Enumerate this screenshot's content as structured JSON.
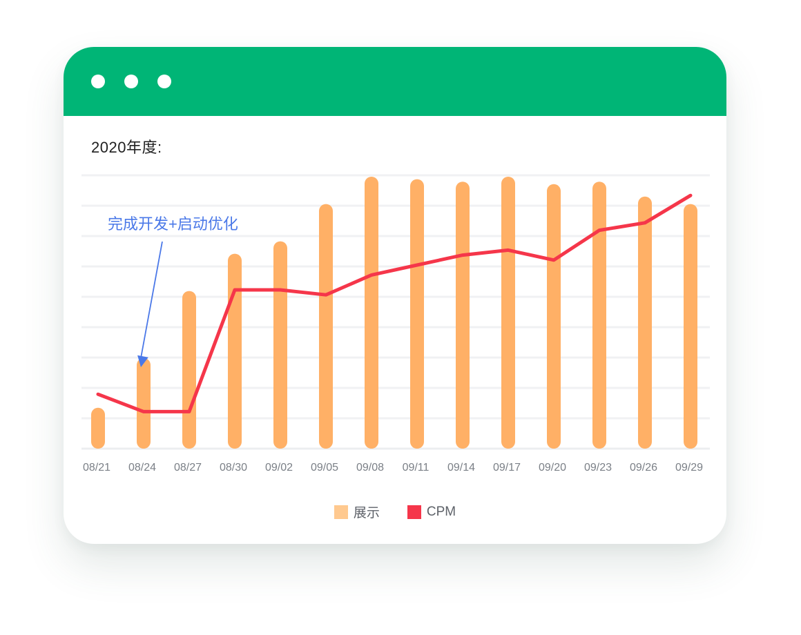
{
  "window": {
    "title_bar_color": "#00b576",
    "dots": [
      "dot",
      "dot",
      "dot"
    ]
  },
  "chart_data": {
    "type": "bar",
    "title": "2020年度:",
    "categories": [
      "08/21",
      "08/24",
      "08/27",
      "08/30",
      "09/02",
      "09/05",
      "09/08",
      "09/11",
      "09/14",
      "09/17",
      "09/20",
      "09/23",
      "09/26",
      "09/29"
    ],
    "ylim": [
      0,
      100
    ],
    "grid": true,
    "legend_position": "bottom-center",
    "series": [
      {
        "name": "展示",
        "type": "bar",
        "color": "#ffb066",
        "legend_color": "#ffc98f",
        "values": [
          7,
          27,
          54,
          69,
          74,
          89,
          100,
          99,
          98,
          100,
          97,
          98,
          92,
          89
        ]
      },
      {
        "name": "CPM",
        "type": "line",
        "color": "#f5364a",
        "values": [
          18,
          11,
          11,
          60,
          60,
          58,
          66,
          70,
          74,
          76,
          72,
          84,
          87,
          98
        ]
      }
    ],
    "annotation": {
      "text": "完成开发+启动优化",
      "target_category": "08/24",
      "color": "#4a78e8"
    }
  }
}
